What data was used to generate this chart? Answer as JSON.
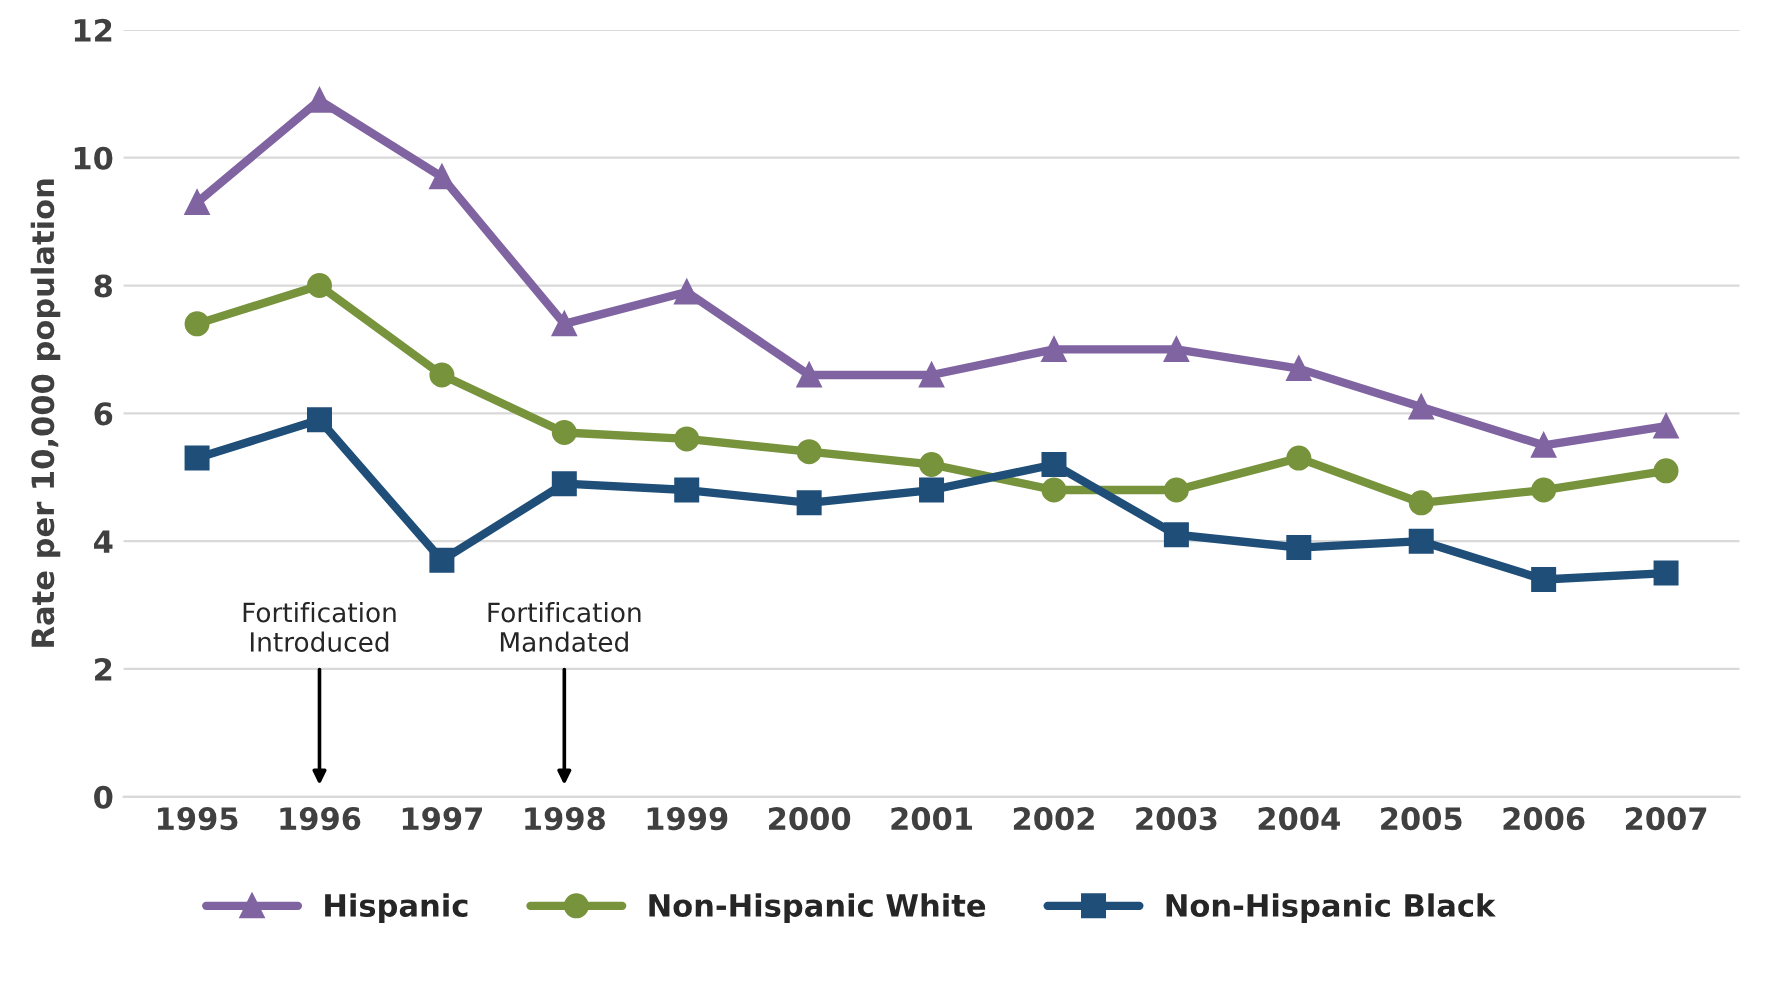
{
  "chart_data": {
    "type": "line",
    "ylabel": "Rate per 10,000 population",
    "categories": [
      "1995",
      "1996",
      "1997",
      "1998",
      "1999",
      "2000",
      "2001",
      "2002",
      "2003",
      "2004",
      "2005",
      "2006",
      "2007"
    ],
    "series": [
      {
        "name": "Hispanic",
        "color": "#8064a2",
        "marker": "triangle",
        "values": [
          9.3,
          10.9,
          9.7,
          7.4,
          7.9,
          6.6,
          6.6,
          7.0,
          7.0,
          6.7,
          6.1,
          5.5,
          5.8
        ]
      },
      {
        "name": "Non-Hispanic White",
        "color": "#77933c",
        "marker": "circle",
        "values": [
          7.4,
          8.0,
          6.6,
          5.7,
          5.6,
          5.4,
          5.2,
          4.8,
          4.8,
          5.3,
          4.6,
          4.8,
          5.1
        ]
      },
      {
        "name": "Non-Hispanic Black",
        "color": "#1f4e79",
        "marker": "square",
        "values": [
          5.3,
          5.9,
          3.7,
          4.9,
          4.8,
          4.6,
          4.8,
          5.2,
          4.1,
          3.9,
          4.0,
          3.4,
          3.5
        ]
      }
    ],
    "ylim": [
      0,
      12
    ],
    "yticks": [
      0,
      2,
      4,
      6,
      8,
      10,
      12
    ],
    "grid": "y",
    "legend": "bottom",
    "annotations": [
      "Fortification\nIntroduced",
      "Fortification\nMandated"
    ]
  }
}
